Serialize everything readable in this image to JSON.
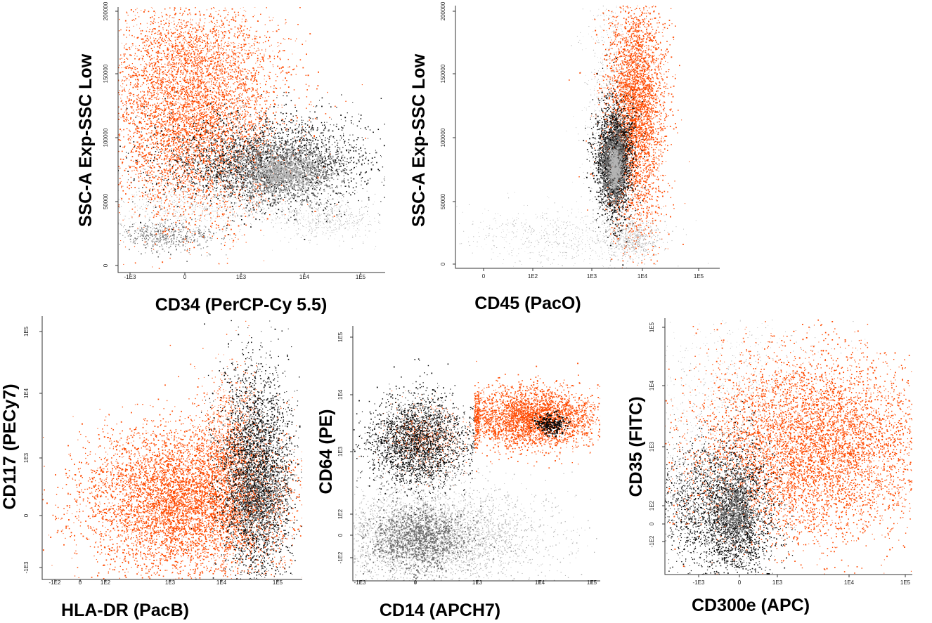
{
  "colors": {
    "orange": "#ff4a00",
    "black": "#0a0a0a",
    "gray_light": "#b4b4b4",
    "gray_dark": "#6e6e6e"
  },
  "chart_data": [
    {
      "type": "scatter",
      "id": "p1",
      "xlabel": "CD34 (PerCP-Cy 5.5)",
      "ylabel": "SSC-A Exp-SSC Low",
      "x_scale": "biexponential",
      "y_scale": "linear",
      "x_ticks": [
        "-1E3",
        "0",
        "1E3",
        "1E4",
        "1E5"
      ],
      "y_ticks": [
        "0",
        "50000",
        "100000",
        "150000",
        "200000"
      ],
      "populations": [
        {
          "color": "#ff4a00",
          "x_center": "~1E2",
          "y_center": 120000,
          "note": "broad orange population, high SSC"
        },
        {
          "color": "#0a0a0a",
          "x_center": "~5E3",
          "y_center": 40000,
          "note": "black population with gray density core"
        },
        {
          "color": "#b4b4b4",
          "x_center": "~0",
          "y_center": 12000,
          "note": "gray low-SSC population"
        }
      ]
    },
    {
      "type": "scatter",
      "id": "p2",
      "xlabel": "CD45 (PacO)",
      "ylabel": "SSC-A Exp-SSC Low",
      "x_scale": "biexponential",
      "y_scale": "linear",
      "x_ticks": [
        "0",
        "1E2",
        "1E3",
        "1E4",
        "1E5"
      ],
      "y_ticks": [
        "0",
        "50000",
        "100000",
        "150000",
        "200000"
      ],
      "populations": [
        {
          "color": "#ff4a00",
          "x_center": "~6E3",
          "y_center": 120000,
          "note": "orange vertical band"
        },
        {
          "color": "#0a0a0a",
          "x_center": "~4E3",
          "y_center": 40000,
          "note": "black oval with gray core"
        },
        {
          "color": "#b4b4b4",
          "x_center": "~1E3",
          "y_center": 10000,
          "note": "gray scattered events"
        }
      ]
    },
    {
      "type": "scatter",
      "id": "p3",
      "xlabel": "HLA-DR (PacB)",
      "ylabel": "CD117 (PECy7)",
      "x_scale": "biexponential",
      "y_scale": "biexponential",
      "x_ticks": [
        "-1E2",
        "0",
        "1E2",
        "1E3",
        "1E4",
        "1E5"
      ],
      "y_ticks": [
        "-1E3",
        "0",
        "1E3",
        "1E4",
        "1E5"
      ],
      "populations": [
        {
          "color": "#ff4a00",
          "x_center": "~1E3",
          "y_center": "~5E2",
          "note": "large orange cloud"
        },
        {
          "color": "#0a0a0a",
          "x_center": "~3E4",
          "y_center": "~1E3",
          "note": "black column, HLA-DR high"
        }
      ]
    },
    {
      "type": "scatter",
      "id": "p4",
      "xlabel": "CD14 (APCH7)",
      "ylabel": "CD64 (PE)",
      "x_scale": "biexponential",
      "y_scale": "biexponential",
      "x_ticks": [
        "-1E3",
        "0",
        "1E3",
        "1E4",
        "1E5"
      ],
      "y_ticks": [
        "-1E2",
        "0",
        "1E2",
        "1E3",
        "1E4",
        "1E5"
      ],
      "populations": [
        {
          "color": "#ff4a00",
          "x_center": "~2E4",
          "y_center": "~3E3",
          "note": "orange CD14+ CD64+"
        },
        {
          "color": "#0a0a0a",
          "x_center": "~2E2",
          "y_center": "~1.5E3",
          "note": "black CD14- CD64+"
        },
        {
          "color": "#b4b4b4",
          "x_center": "~0",
          "y_center": "~0",
          "note": "gray CD64- population"
        }
      ]
    },
    {
      "type": "scatter",
      "id": "p5",
      "xlabel": "CD300e (APC)",
      "ylabel": "CD35 (FITC)",
      "x_scale": "biexponential",
      "y_scale": "biexponential",
      "x_ticks": [
        "-1E3",
        "0",
        "1E3",
        "1E4",
        "1E5"
      ],
      "y_ticks": [
        "-1E2",
        "0",
        "1E2",
        "1E3",
        "1E4",
        "1E5"
      ],
      "populations": [
        {
          "color": "#ff4a00",
          "x_center": "~5E3",
          "y_center": "~1E3",
          "note": "orange broad population"
        },
        {
          "color": "#0a0a0a",
          "x_center": "~0",
          "y_center": "~1E2",
          "note": "black population, CD300e negative"
        }
      ]
    }
  ]
}
